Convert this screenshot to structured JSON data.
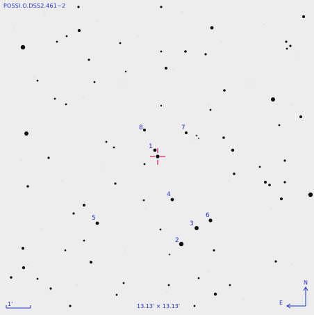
{
  "survey_label": "POSSI.O.DSS2.461~2",
  "field_of_view": "13.13' × 13.13'",
  "scale_bar_label": "1'",
  "compass": {
    "north": "N",
    "east": "E"
  },
  "markers": [
    {
      "id": "1",
      "label": "1"
    },
    {
      "id": "2",
      "label": "2"
    },
    {
      "id": "3",
      "label": "3"
    },
    {
      "id": "4",
      "label": "4"
    },
    {
      "id": "5",
      "label": "5"
    },
    {
      "id": "6",
      "label": "6"
    },
    {
      "id": "7",
      "label": "7"
    },
    {
      "id": "8",
      "label": "8"
    }
  ],
  "colors": {
    "annotation": "#1f2fd0",
    "crosshair": "#e0207a",
    "star": "#111111",
    "background": "#ededed"
  }
}
